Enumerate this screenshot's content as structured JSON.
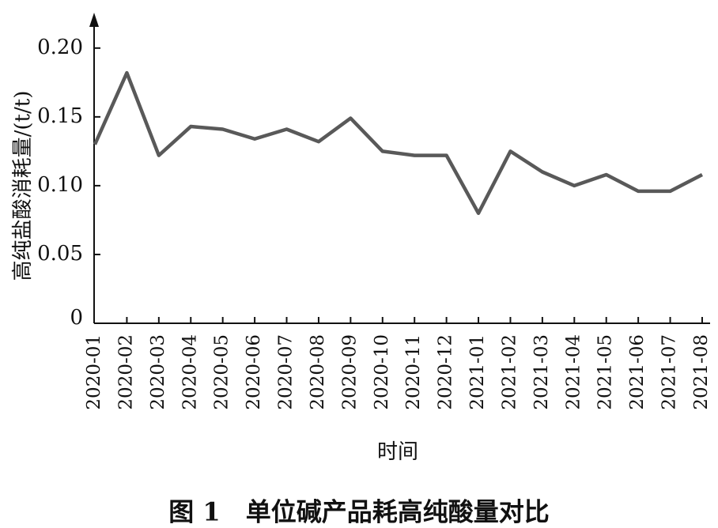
{
  "chart_data": {
    "type": "line",
    "caption": "图 1　单位碱产品耗高纯酸量对比",
    "x_label": "时间",
    "y_label": "高纯盐酸消耗量/(t/t)",
    "categories": [
      "2020-01",
      "2020-02",
      "2020-03",
      "2020-04",
      "2020-05",
      "2020-06",
      "2020-07",
      "2020-08",
      "2020-09",
      "2020-10",
      "2020-11",
      "2020-12",
      "2021-01",
      "2021-02",
      "2021-03",
      "2021-04",
      "2021-05",
      "2021-06",
      "2021-07",
      "2021-08"
    ],
    "values": [
      0.13,
      0.182,
      0.122,
      0.143,
      0.141,
      0.134,
      0.141,
      0.132,
      0.149,
      0.125,
      0.122,
      0.122,
      0.08,
      0.125,
      0.11,
      0.1,
      0.108,
      0.096,
      0.096,
      0.108
    ],
    "color": "#595959",
    "ylim": [
      0,
      0.22
    ],
    "yticks": [
      0,
      {
        "value": 0.05,
        "label": "0.05"
      },
      {
        "value": 0.1,
        "label": "0.10"
      },
      {
        "value": 0.15,
        "label": "0.15"
      },
      {
        "value": 0.2,
        "label": "0.20"
      }
    ],
    "grid": false
  }
}
